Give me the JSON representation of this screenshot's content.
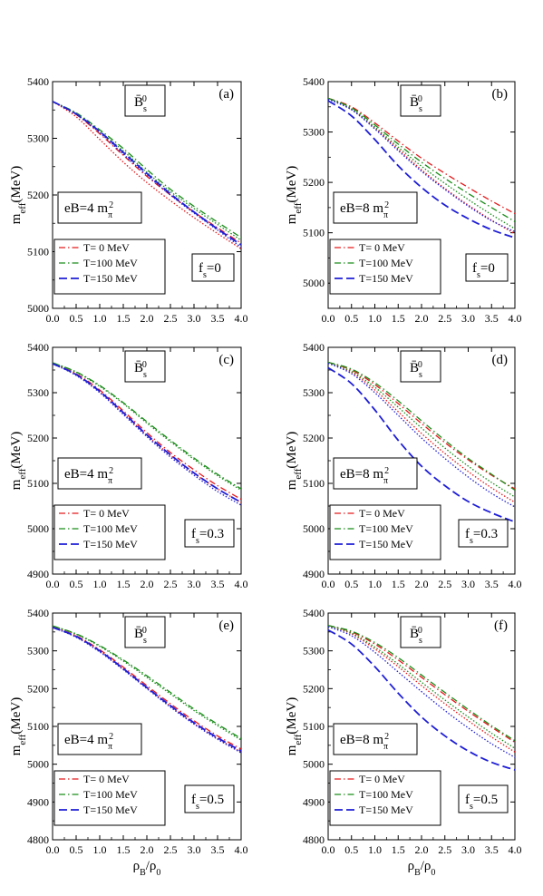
{
  "x_axis_label_html": "ρ<tspan baseline-shift='sub' font-size='10'>B</tspan>/ρ<tspan baseline-shift='sub' font-size='10'>0</tspan>",
  "x_axis_label_text": "ρB/ρ0",
  "y_axis_label_text": "meff(MeV)",
  "meson_label_text": "B̄s0",
  "colors": {
    "T0": "#e41a1c",
    "T100": "#1a8c1a",
    "T150": "#1f1fd6"
  },
  "chart_data": [
    {
      "panel": "(a)",
      "type": "line",
      "eB_label": "eB=4 mπ2",
      "fs_label": "fs=0",
      "xlim": [
        0,
        4
      ],
      "ylim": [
        5000,
        5400
      ],
      "xticks": [
        "0.0",
        "0.5",
        "1.0",
        "1.5",
        "2.0",
        "2.5",
        "3.0",
        "3.5",
        "4.0"
      ],
      "yticks": [
        "5000",
        "5100",
        "5200",
        "5300",
        "5400"
      ],
      "x": [
        0,
        0.5,
        1,
        1.5,
        2,
        2.5,
        3,
        3.5,
        4
      ],
      "series": [
        {
          "name": "T= 0 MeV",
          "style": "dashdot",
          "color": "#e41a1c",
          "values": [
            5365,
            5342,
            5308,
            5270,
            5233,
            5200,
            5170,
            5142,
            5115
          ]
        },
        {
          "name": "T= 0 MeV",
          "style": "dotted",
          "color": "#e41a1c",
          "values": [
            5365,
            5338,
            5298,
            5258,
            5222,
            5190,
            5160,
            5132,
            5105
          ]
        },
        {
          "name": "T=100 MeV",
          "style": "dashdot",
          "color": "#1a8c1a",
          "values": [
            5365,
            5345,
            5315,
            5282,
            5245,
            5210,
            5180,
            5152,
            5125
          ]
        },
        {
          "name": "T=100 MeV",
          "style": "dotted",
          "color": "#1a8c1a",
          "values": [
            5365,
            5343,
            5312,
            5278,
            5240,
            5206,
            5176,
            5148,
            5120
          ]
        },
        {
          "name": "T=150 MeV",
          "style": "dashed",
          "color": "#1f1fd6",
          "values": [
            5365,
            5343,
            5312,
            5275,
            5238,
            5202,
            5170,
            5140,
            5112
          ]
        },
        {
          "name": "T=150 MeV",
          "style": "dotted",
          "color": "#1f1fd6",
          "values": [
            5365,
            5342,
            5310,
            5272,
            5235,
            5200,
            5168,
            5138,
            5108
          ]
        }
      ]
    },
    {
      "panel": "(b)",
      "type": "line",
      "eB_label": "eB=8 mπ2",
      "fs_label": "fs=0",
      "xlim": [
        0,
        4
      ],
      "ylim": [
        4950,
        5400
      ],
      "xticks": [
        "0.0",
        "0.5",
        "1.0",
        "1.5",
        "2.0",
        "2.5",
        "3.0",
        "3.5",
        "4.0"
      ],
      "yticks": [
        "5000",
        "5100",
        "5200",
        "5300",
        "5400"
      ],
      "x": [
        0,
        0.5,
        1,
        1.5,
        2,
        2.5,
        3,
        3.5,
        4
      ],
      "series": [
        {
          "name": "T= 0 MeV",
          "style": "dashdot",
          "color": "#e41a1c",
          "values": [
            5367,
            5350,
            5318,
            5282,
            5248,
            5218,
            5190,
            5163,
            5138
          ]
        },
        {
          "name": "T= 0 MeV",
          "style": "dotted",
          "color": "#e41a1c",
          "values": [
            5367,
            5345,
            5308,
            5266,
            5225,
            5188,
            5155,
            5125,
            5098
          ]
        },
        {
          "name": "T=100 MeV",
          "style": "dashdot",
          "color": "#1a8c1a",
          "values": [
            5367,
            5348,
            5314,
            5276,
            5240,
            5208,
            5178,
            5150,
            5122
          ]
        },
        {
          "name": "T=100 MeV",
          "style": "dotted",
          "color": "#1a8c1a",
          "values": [
            5367,
            5346,
            5310,
            5270,
            5232,
            5198,
            5166,
            5136,
            5108
          ]
        },
        {
          "name": "T=150 MeV",
          "style": "dashed",
          "color": "#1f1fd6",
          "values": [
            5362,
            5332,
            5285,
            5233,
            5190,
            5155,
            5128,
            5106,
            5090
          ]
        },
        {
          "name": "T=150 MeV",
          "style": "dotted",
          "color": "#1f1fd6",
          "values": [
            5365,
            5344,
            5306,
            5263,
            5222,
            5186,
            5153,
            5124,
            5102
          ]
        }
      ]
    },
    {
      "panel": "(c)",
      "type": "line",
      "eB_label": "eB=4 mπ2",
      "fs_label": "fs=0.3",
      "xlim": [
        0,
        4
      ],
      "ylim": [
        4900,
        5400
      ],
      "xticks": [
        "0.0",
        "0.5",
        "1.0",
        "1.5",
        "2.0",
        "2.5",
        "3.0",
        "3.5",
        "4.0"
      ],
      "yticks": [
        "4900",
        "5000",
        "5100",
        "5200",
        "5300",
        "5400"
      ],
      "x": [
        0,
        0.5,
        1,
        1.5,
        2,
        2.5,
        3,
        3.5,
        4
      ],
      "series": [
        {
          "name": "T= 0 MeV",
          "style": "dashdot",
          "color": "#e41a1c",
          "values": [
            5365,
            5342,
            5306,
            5260,
            5212,
            5168,
            5130,
            5095,
            5065
          ]
        },
        {
          "name": "T= 0 MeV",
          "style": "dotted",
          "color": "#e41a1c",
          "values": [
            5365,
            5340,
            5302,
            5255,
            5206,
            5162,
            5122,
            5088,
            5058
          ]
        },
        {
          "name": "T=100 MeV",
          "style": "dashdot",
          "color": "#1a8c1a",
          "values": [
            5366,
            5346,
            5316,
            5278,
            5236,
            5195,
            5156,
            5120,
            5088
          ]
        },
        {
          "name": "T=100 MeV",
          "style": "dotted",
          "color": "#1a8c1a",
          "values": [
            5366,
            5345,
            5314,
            5276,
            5233,
            5192,
            5153,
            5117,
            5085
          ]
        },
        {
          "name": "T=150 MeV",
          "style": "dashed",
          "color": "#1f1fd6",
          "values": [
            5364,
            5340,
            5303,
            5256,
            5207,
            5163,
            5123,
            5088,
            5058
          ]
        },
        {
          "name": "T=150 MeV",
          "style": "dotted",
          "color": "#1f1fd6",
          "values": [
            5364,
            5338,
            5300,
            5252,
            5203,
            5158,
            5118,
            5082,
            5052
          ]
        }
      ]
    },
    {
      "panel": "(d)",
      "type": "line",
      "eB_label": "eB=8 mπ2",
      "fs_label": "fs=0.3",
      "xlim": [
        0,
        4
      ],
      "ylim": [
        4900,
        5400
      ],
      "xticks": [
        "0.0",
        "0.5",
        "1.0",
        "1.5",
        "2.0",
        "2.5",
        "3.0",
        "3.5",
        "4.0"
      ],
      "yticks": [
        "4900",
        "5000",
        "5100",
        "5200",
        "5300",
        "5400"
      ],
      "x": [
        0,
        0.5,
        1,
        1.5,
        2,
        2.5,
        3,
        3.5,
        4
      ],
      "series": [
        {
          "name": "T= 0 MeV",
          "style": "dashdot",
          "color": "#e41a1c",
          "values": [
            5367,
            5350,
            5318,
            5276,
            5232,
            5190,
            5152,
            5118,
            5088
          ]
        },
        {
          "name": "T= 0 MeV",
          "style": "dotted",
          "color": "#e41a1c",
          "values": [
            5367,
            5345,
            5306,
            5258,
            5210,
            5166,
            5126,
            5090,
            5058
          ]
        },
        {
          "name": "T=100 MeV",
          "style": "dashdot",
          "color": "#1a8c1a",
          "values": [
            5367,
            5352,
            5322,
            5282,
            5238,
            5195,
            5155,
            5120,
            5085
          ]
        },
        {
          "name": "T=100 MeV",
          "style": "dotted",
          "color": "#1a8c1a",
          "values": [
            5367,
            5347,
            5312,
            5268,
            5222,
            5178,
            5138,
            5102,
            5070
          ]
        },
        {
          "name": "T=150 MeV",
          "style": "dashed",
          "color": "#1f1fd6",
          "values": [
            5355,
            5320,
            5262,
            5195,
            5138,
            5095,
            5060,
            5035,
            5015
          ]
        },
        {
          "name": "T=150 MeV",
          "style": "dotted",
          "color": "#1f1fd6",
          "values": [
            5365,
            5342,
            5300,
            5250,
            5200,
            5155,
            5114,
            5078,
            5048
          ]
        }
      ]
    },
    {
      "panel": "(e)",
      "type": "line",
      "eB_label": "eB=4 mπ2",
      "fs_label": "fs=0.5",
      "xlim": [
        0,
        4
      ],
      "ylim": [
        4800,
        5400
      ],
      "xticks": [
        "0.0",
        "0.5",
        "1.0",
        "1.5",
        "2.0",
        "2.5",
        "3.0",
        "3.5",
        "4.0"
      ],
      "yticks": [
        "4800",
        "4900",
        "5000",
        "5100",
        "5200",
        "5300",
        "5400"
      ],
      "x": [
        0,
        0.5,
        1,
        1.5,
        2,
        2.5,
        3,
        3.5,
        4
      ],
      "series": [
        {
          "name": "T= 0 MeV",
          "style": "dashdot",
          "color": "#e41a1c",
          "values": [
            5364,
            5340,
            5303,
            5257,
            5208,
            5160,
            5115,
            5075,
            5040
          ]
        },
        {
          "name": "T= 0 MeV",
          "style": "dotted",
          "color": "#e41a1c",
          "values": [
            5364,
            5338,
            5300,
            5252,
            5202,
            5154,
            5108,
            5068,
            5032
          ]
        },
        {
          "name": "T=100 MeV",
          "style": "dashdot",
          "color": "#1a8c1a",
          "values": [
            5366,
            5345,
            5314,
            5276,
            5234,
            5190,
            5146,
            5106,
            5068
          ]
        },
        {
          "name": "T=100 MeV",
          "style": "dotted",
          "color": "#1a8c1a",
          "values": [
            5366,
            5344,
            5312,
            5273,
            5230,
            5186,
            5142,
            5102,
            5064
          ]
        },
        {
          "name": "T=150 MeV",
          "style": "dashed",
          "color": "#1f1fd6",
          "values": [
            5362,
            5338,
            5300,
            5253,
            5203,
            5155,
            5110,
            5070,
            5035
          ]
        },
        {
          "name": "T=150 MeV",
          "style": "dotted",
          "color": "#1f1fd6",
          "values": [
            5362,
            5336,
            5297,
            5250,
            5200,
            5151,
            5106,
            5066,
            5030
          ]
        }
      ]
    },
    {
      "panel": "(f)",
      "type": "line",
      "eB_label": "eB=8 mπ2",
      "fs_label": "fs=0.5",
      "xlim": [
        0,
        4
      ],
      "ylim": [
        4800,
        5400
      ],
      "xticks": [
        "0.0",
        "0.5",
        "1.0",
        "1.5",
        "2.0",
        "2.5",
        "3.0",
        "3.5",
        "4.0"
      ],
      "yticks": [
        "4800",
        "4900",
        "5000",
        "5100",
        "5200",
        "5300",
        "5400"
      ],
      "x": [
        0,
        0.5,
        1,
        1.5,
        2,
        2.5,
        3,
        3.5,
        4
      ],
      "series": [
        {
          "name": "T= 0 MeV",
          "style": "dashdot",
          "color": "#e41a1c",
          "values": [
            5367,
            5350,
            5318,
            5276,
            5230,
            5184,
            5140,
            5098,
            5058
          ]
        },
        {
          "name": "T= 0 MeV",
          "style": "dotted",
          "color": "#e41a1c",
          "values": [
            5367,
            5345,
            5305,
            5258,
            5208,
            5160,
            5115,
            5072,
            5032
          ]
        },
        {
          "name": "T=100 MeV",
          "style": "dashdot",
          "color": "#1a8c1a",
          "values": [
            5367,
            5352,
            5322,
            5282,
            5236,
            5190,
            5145,
            5102,
            5062
          ]
        },
        {
          "name": "T=100 MeV",
          "style": "dotted",
          "color": "#1a8c1a",
          "values": [
            5367,
            5347,
            5310,
            5265,
            5217,
            5170,
            5125,
            5082,
            5042
          ]
        },
        {
          "name": "T=150 MeV",
          "style": "dashed",
          "color": "#1f1fd6",
          "values": [
            5355,
            5318,
            5258,
            5188,
            5125,
            5075,
            5035,
            5005,
            4985
          ]
        },
        {
          "name": "T=150 MeV",
          "style": "dotted",
          "color": "#1f1fd6",
          "values": [
            5364,
            5340,
            5296,
            5244,
            5192,
            5142,
            5096,
            5054,
            5018
          ]
        }
      ]
    }
  ]
}
